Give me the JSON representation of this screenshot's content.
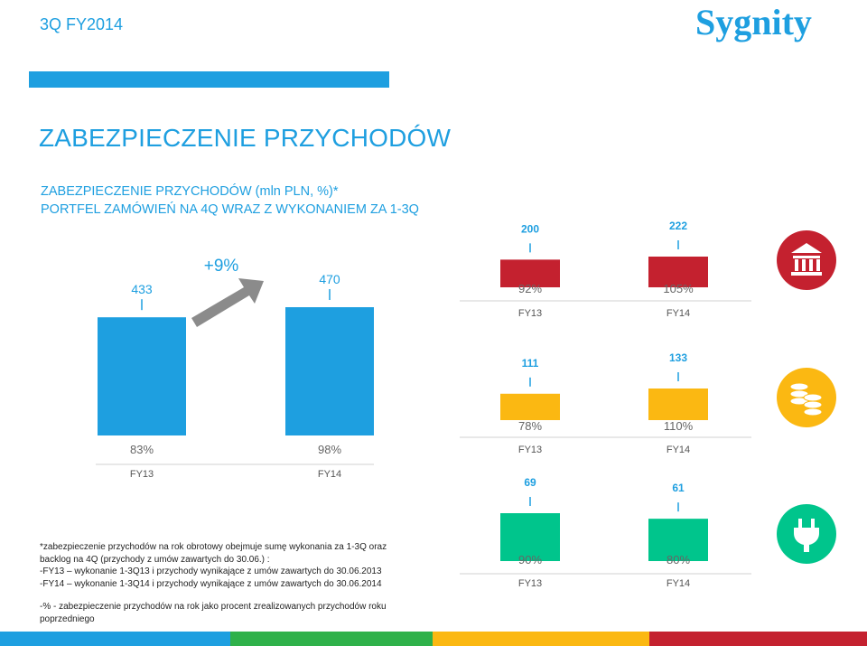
{
  "header": {
    "title": "3Q FY2014",
    "logo_text": "Sygnity"
  },
  "page_title": "ZABEZPIECZENIE PRZYCHODÓW",
  "subtitle": {
    "line1": "ZABEZPIECZENIE PRZYCHODÓW (mln PLN, %)*",
    "line2": "PORTFEL ZAMÓWIEŃ  NA 4Q WRAZ Z WYKONANIEM ZA 1-3Q"
  },
  "colors": {
    "blue": "#1e9fe0",
    "red": "#c4212f",
    "yellow": "#fbb812",
    "green": "#00c58c",
    "arrow": "#8b8b8b"
  },
  "chart_data": [
    {
      "type": "bar",
      "categories": [
        "FY13",
        "FY14"
      ],
      "values": [
        433,
        470
      ],
      "percent_labels": [
        "83%",
        "98%"
      ],
      "growth_label": "+9%",
      "color": "#1e9fe0",
      "ylim": [
        0,
        470
      ]
    },
    {
      "type": "bar",
      "icon": "bank-icon",
      "categories": [
        "FY13",
        "FY14"
      ],
      "values": [
        200,
        222
      ],
      "percent_labels": [
        "92%",
        "105%"
      ],
      "color": "#c4212f",
      "ylim": [
        0,
        222
      ]
    },
    {
      "type": "bar",
      "icon": "coins-icon",
      "categories": [
        "FY13",
        "FY14"
      ],
      "values": [
        111,
        133
      ],
      "percent_labels": [
        "78%",
        "110%"
      ],
      "color": "#fbb812",
      "ylim": [
        0,
        133
      ]
    },
    {
      "type": "bar",
      "icon": "plug-icon",
      "categories": [
        "FY13",
        "FY14"
      ],
      "values": [
        69,
        61
      ],
      "percent_labels": [
        "90%",
        "80%"
      ],
      "color": "#00c58c",
      "ylim": [
        0,
        69
      ]
    }
  ],
  "footnotes": {
    "line1": "*zabezpieczenie przychodów na rok obrotowy obejmuje sumę wykonania za 1-3Q oraz",
    "line2": "backlog na 4Q  (przychody z umów zawartych do 30.06.) :",
    "line3": "-FY13 – wykonanie 1-3Q13 i przychody  wynikające  z umów zawartych do 30.06.2013",
    "line4": "-FY14 – wykonanie 1-3Q14 i przychody  wynikające  z umów zawartych do 30.06.2014",
    "line5": "-% - zabezpieczenie przychodów  na rok jako procent zrealizowanych przychodów  roku",
    "line6": "poprzedniego"
  },
  "footer_colors": [
    "#1e9fe0",
    "#2fb14a",
    "#fbb812",
    "#c4212f"
  ]
}
